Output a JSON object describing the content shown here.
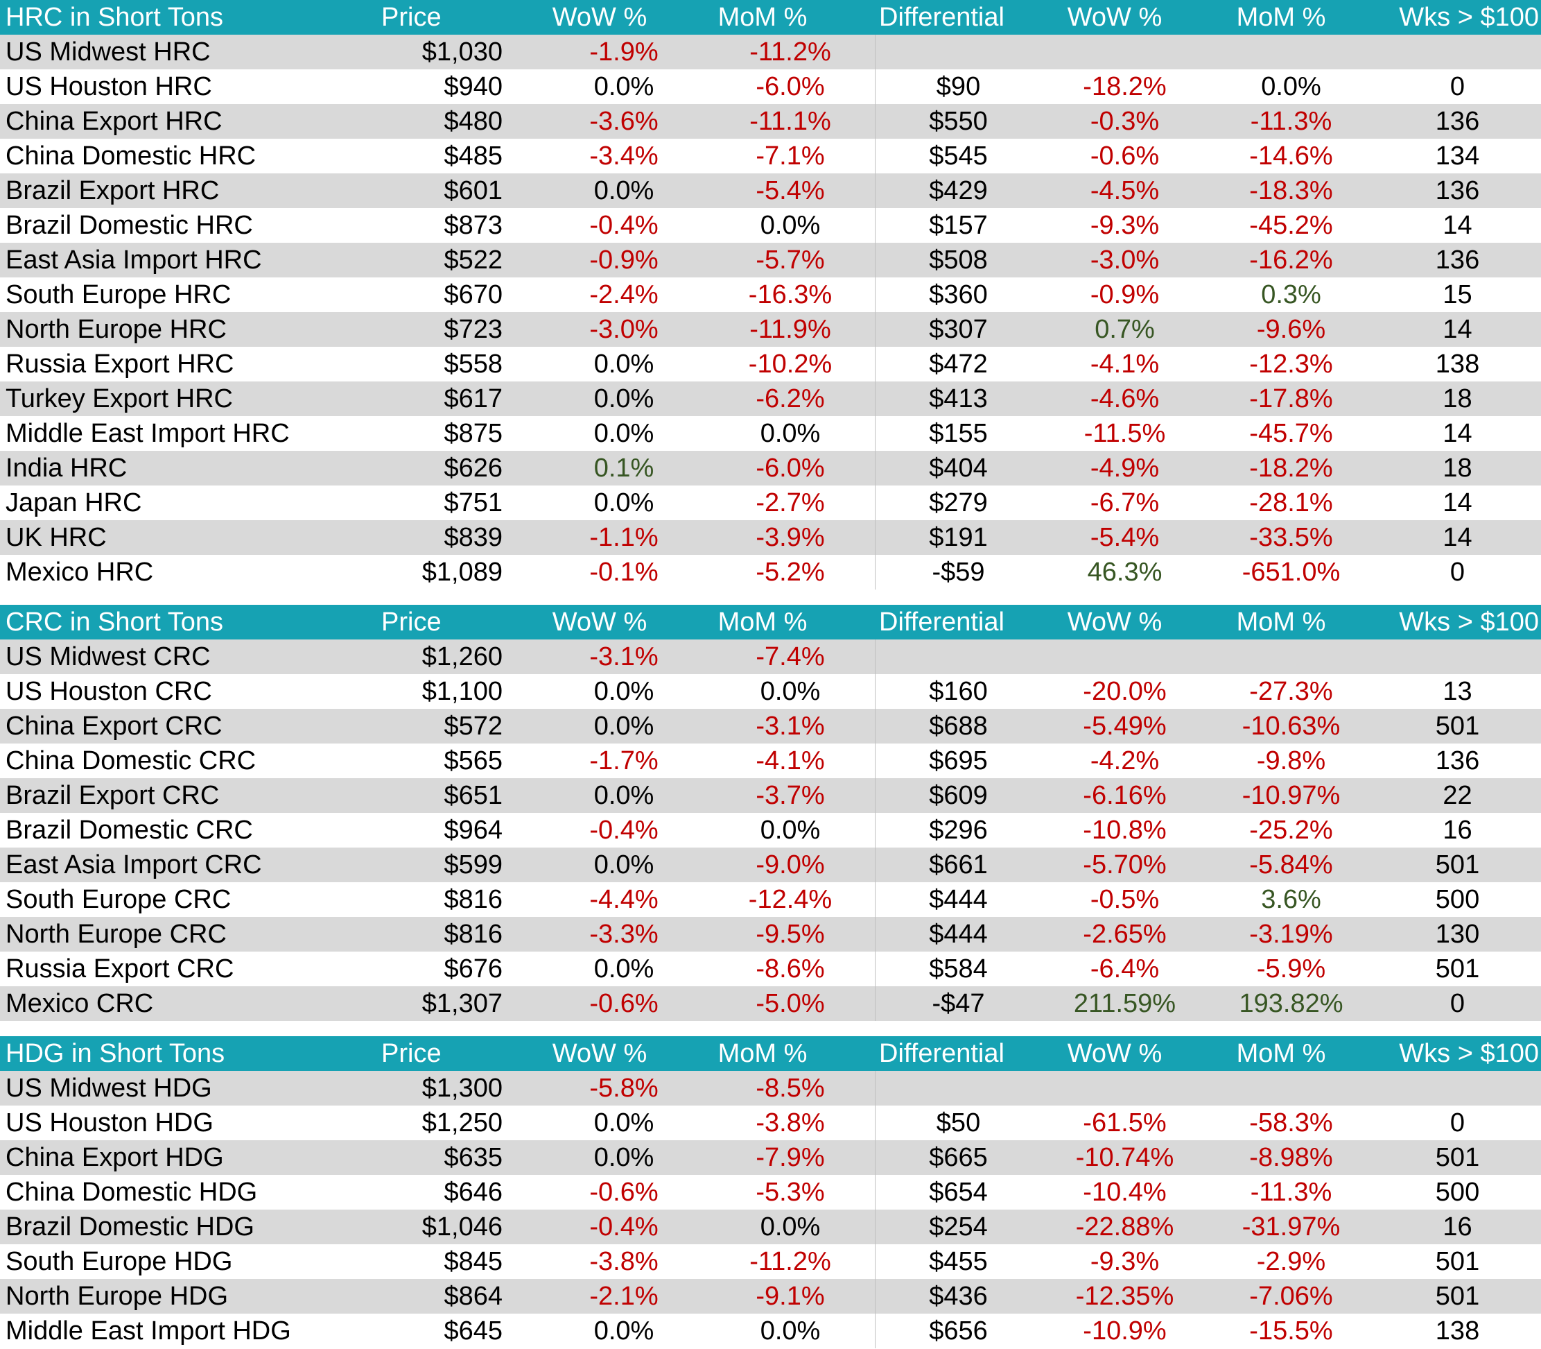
{
  "colors": {
    "header_bg": "#16a2b3",
    "row_shade": "#d9d9d9",
    "negative": "#c00000",
    "positive": "#375623"
  },
  "sections": [
    {
      "header": [
        "HRC in Short Tons",
        "Price",
        "WoW %",
        "MoM %",
        "Differential",
        "WoW %",
        "MoM %",
        "Wks > $100"
      ],
      "rows": [
        [
          "US Midwest HRC",
          "$1,030",
          "-1.9%",
          "-11.2%",
          "",
          "",
          "",
          ""
        ],
        [
          "US Houston HRC",
          "$940",
          "0.0%",
          "-6.0%",
          "$90",
          "-18.2%",
          "0.0%",
          "0"
        ],
        [
          "China Export HRC",
          "$480",
          "-3.6%",
          "-11.1%",
          "$550",
          "-0.3%",
          "-11.3%",
          "136"
        ],
        [
          "China Domestic HRC",
          "$485",
          "-3.4%",
          "-7.1%",
          "$545",
          "-0.6%",
          "-14.6%",
          "134"
        ],
        [
          "Brazil Export HRC",
          "$601",
          "0.0%",
          "-5.4%",
          "$429",
          "-4.5%",
          "-18.3%",
          "136"
        ],
        [
          "Brazil Domestic HRC",
          "$873",
          "-0.4%",
          "0.0%",
          "$157",
          "-9.3%",
          "-45.2%",
          "14"
        ],
        [
          "East Asia Import HRC",
          "$522",
          "-0.9%",
          "-5.7%",
          "$508",
          "-3.0%",
          "-16.2%",
          "136"
        ],
        [
          "South Europe HRC",
          "$670",
          "-2.4%",
          "-16.3%",
          "$360",
          "-0.9%",
          "0.3%",
          "15"
        ],
        [
          "North Europe HRC",
          "$723",
          "-3.0%",
          "-11.9%",
          "$307",
          "0.7%",
          "-9.6%",
          "14"
        ],
        [
          "Russia Export HRC",
          "$558",
          "0.0%",
          "-10.2%",
          "$472",
          "-4.1%",
          "-12.3%",
          "138"
        ],
        [
          "Turkey Export HRC",
          "$617",
          "0.0%",
          "-6.2%",
          "$413",
          "-4.6%",
          "-17.8%",
          "18"
        ],
        [
          "Middle East Import HRC",
          "$875",
          "0.0%",
          "0.0%",
          "$155",
          "-11.5%",
          "-45.7%",
          "14"
        ],
        [
          "India HRC",
          "$626",
          "0.1%",
          "-6.0%",
          "$404",
          "-4.9%",
          "-18.2%",
          "18"
        ],
        [
          "Japan HRC",
          "$751",
          "0.0%",
          "-2.7%",
          "$279",
          "-6.7%",
          "-28.1%",
          "14"
        ],
        [
          "UK HRC",
          "$839",
          "-1.1%",
          "-3.9%",
          "$191",
          "-5.4%",
          "-33.5%",
          "14"
        ],
        [
          "Mexico HRC",
          "$1,089",
          "-0.1%",
          "-5.2%",
          "-$59",
          "46.3%",
          "-651.0%",
          "0"
        ]
      ]
    },
    {
      "header": [
        "CRC in Short Tons",
        "Price",
        "WoW %",
        "MoM %",
        "Differential",
        "WoW %",
        "MoM %",
        "Wks > $100"
      ],
      "rows": [
        [
          "US Midwest CRC",
          "$1,260",
          "-3.1%",
          "-7.4%",
          "",
          "",
          "",
          ""
        ],
        [
          "US Houston CRC",
          "$1,100",
          "0.0%",
          "0.0%",
          "$160",
          "-20.0%",
          "-27.3%",
          "13"
        ],
        [
          "China Export CRC",
          "$572",
          "0.0%",
          "-3.1%",
          "$688",
          "-5.49%",
          "-10.63%",
          "501"
        ],
        [
          "China Domestic CRC",
          "$565",
          "-1.7%",
          "-4.1%",
          "$695",
          "-4.2%",
          "-9.8%",
          "136"
        ],
        [
          "Brazil Export CRC",
          "$651",
          "0.0%",
          "-3.7%",
          "$609",
          "-6.16%",
          "-10.97%",
          "22"
        ],
        [
          "Brazil Domestic CRC",
          "$964",
          "-0.4%",
          "0.0%",
          "$296",
          "-10.8%",
          "-25.2%",
          "16"
        ],
        [
          "East Asia Import CRC",
          "$599",
          "0.0%",
          "-9.0%",
          "$661",
          "-5.70%",
          "-5.84%",
          "501"
        ],
        [
          "South Europe CRC",
          "$816",
          "-4.4%",
          "-12.4%",
          "$444",
          "-0.5%",
          "3.6%",
          "500"
        ],
        [
          "North Europe CRC",
          "$816",
          "-3.3%",
          "-9.5%",
          "$444",
          "-2.65%",
          "-3.19%",
          "130"
        ],
        [
          "Russia Export CRC",
          "$676",
          "0.0%",
          "-8.6%",
          "$584",
          "-6.4%",
          "-5.9%",
          "501"
        ],
        [
          "Mexico CRC",
          "$1,307",
          "-0.6%",
          "-5.0%",
          "-$47",
          "211.59%",
          "193.82%",
          "0"
        ]
      ]
    },
    {
      "header": [
        "HDG in Short Tons",
        "Price",
        "WoW %",
        "MoM %",
        "Differential",
        "WoW %",
        "MoM %",
        "Wks > $100"
      ],
      "rows": [
        [
          "US Midwest HDG",
          "$1,300",
          "-5.8%",
          "-8.5%",
          "",
          "",
          "",
          ""
        ],
        [
          "US Houston HDG",
          "$1,250",
          "0.0%",
          "-3.8%",
          "$50",
          "-61.5%",
          "-58.3%",
          "0"
        ],
        [
          "China Export HDG",
          "$635",
          "0.0%",
          "-7.9%",
          "$665",
          "-10.74%",
          "-8.98%",
          "501"
        ],
        [
          "China Domestic HDG",
          "$646",
          "-0.6%",
          "-5.3%",
          "$654",
          "-10.4%",
          "-11.3%",
          "500"
        ],
        [
          "Brazil Domestic HDG",
          "$1,046",
          "-0.4%",
          "0.0%",
          "$254",
          "-22.88%",
          "-31.97%",
          "16"
        ],
        [
          "South Europe HDG",
          "$845",
          "-3.8%",
          "-11.2%",
          "$455",
          "-9.3%",
          "-2.9%",
          "501"
        ],
        [
          "North Europe HDG",
          "$864",
          "-2.1%",
          "-9.1%",
          "$436",
          "-12.35%",
          "-7.06%",
          "501"
        ],
        [
          "Middle East Import HDG",
          "$645",
          "0.0%",
          "0.0%",
          "$656",
          "-10.9%",
          "-15.5%",
          "138"
        ]
      ]
    }
  ]
}
